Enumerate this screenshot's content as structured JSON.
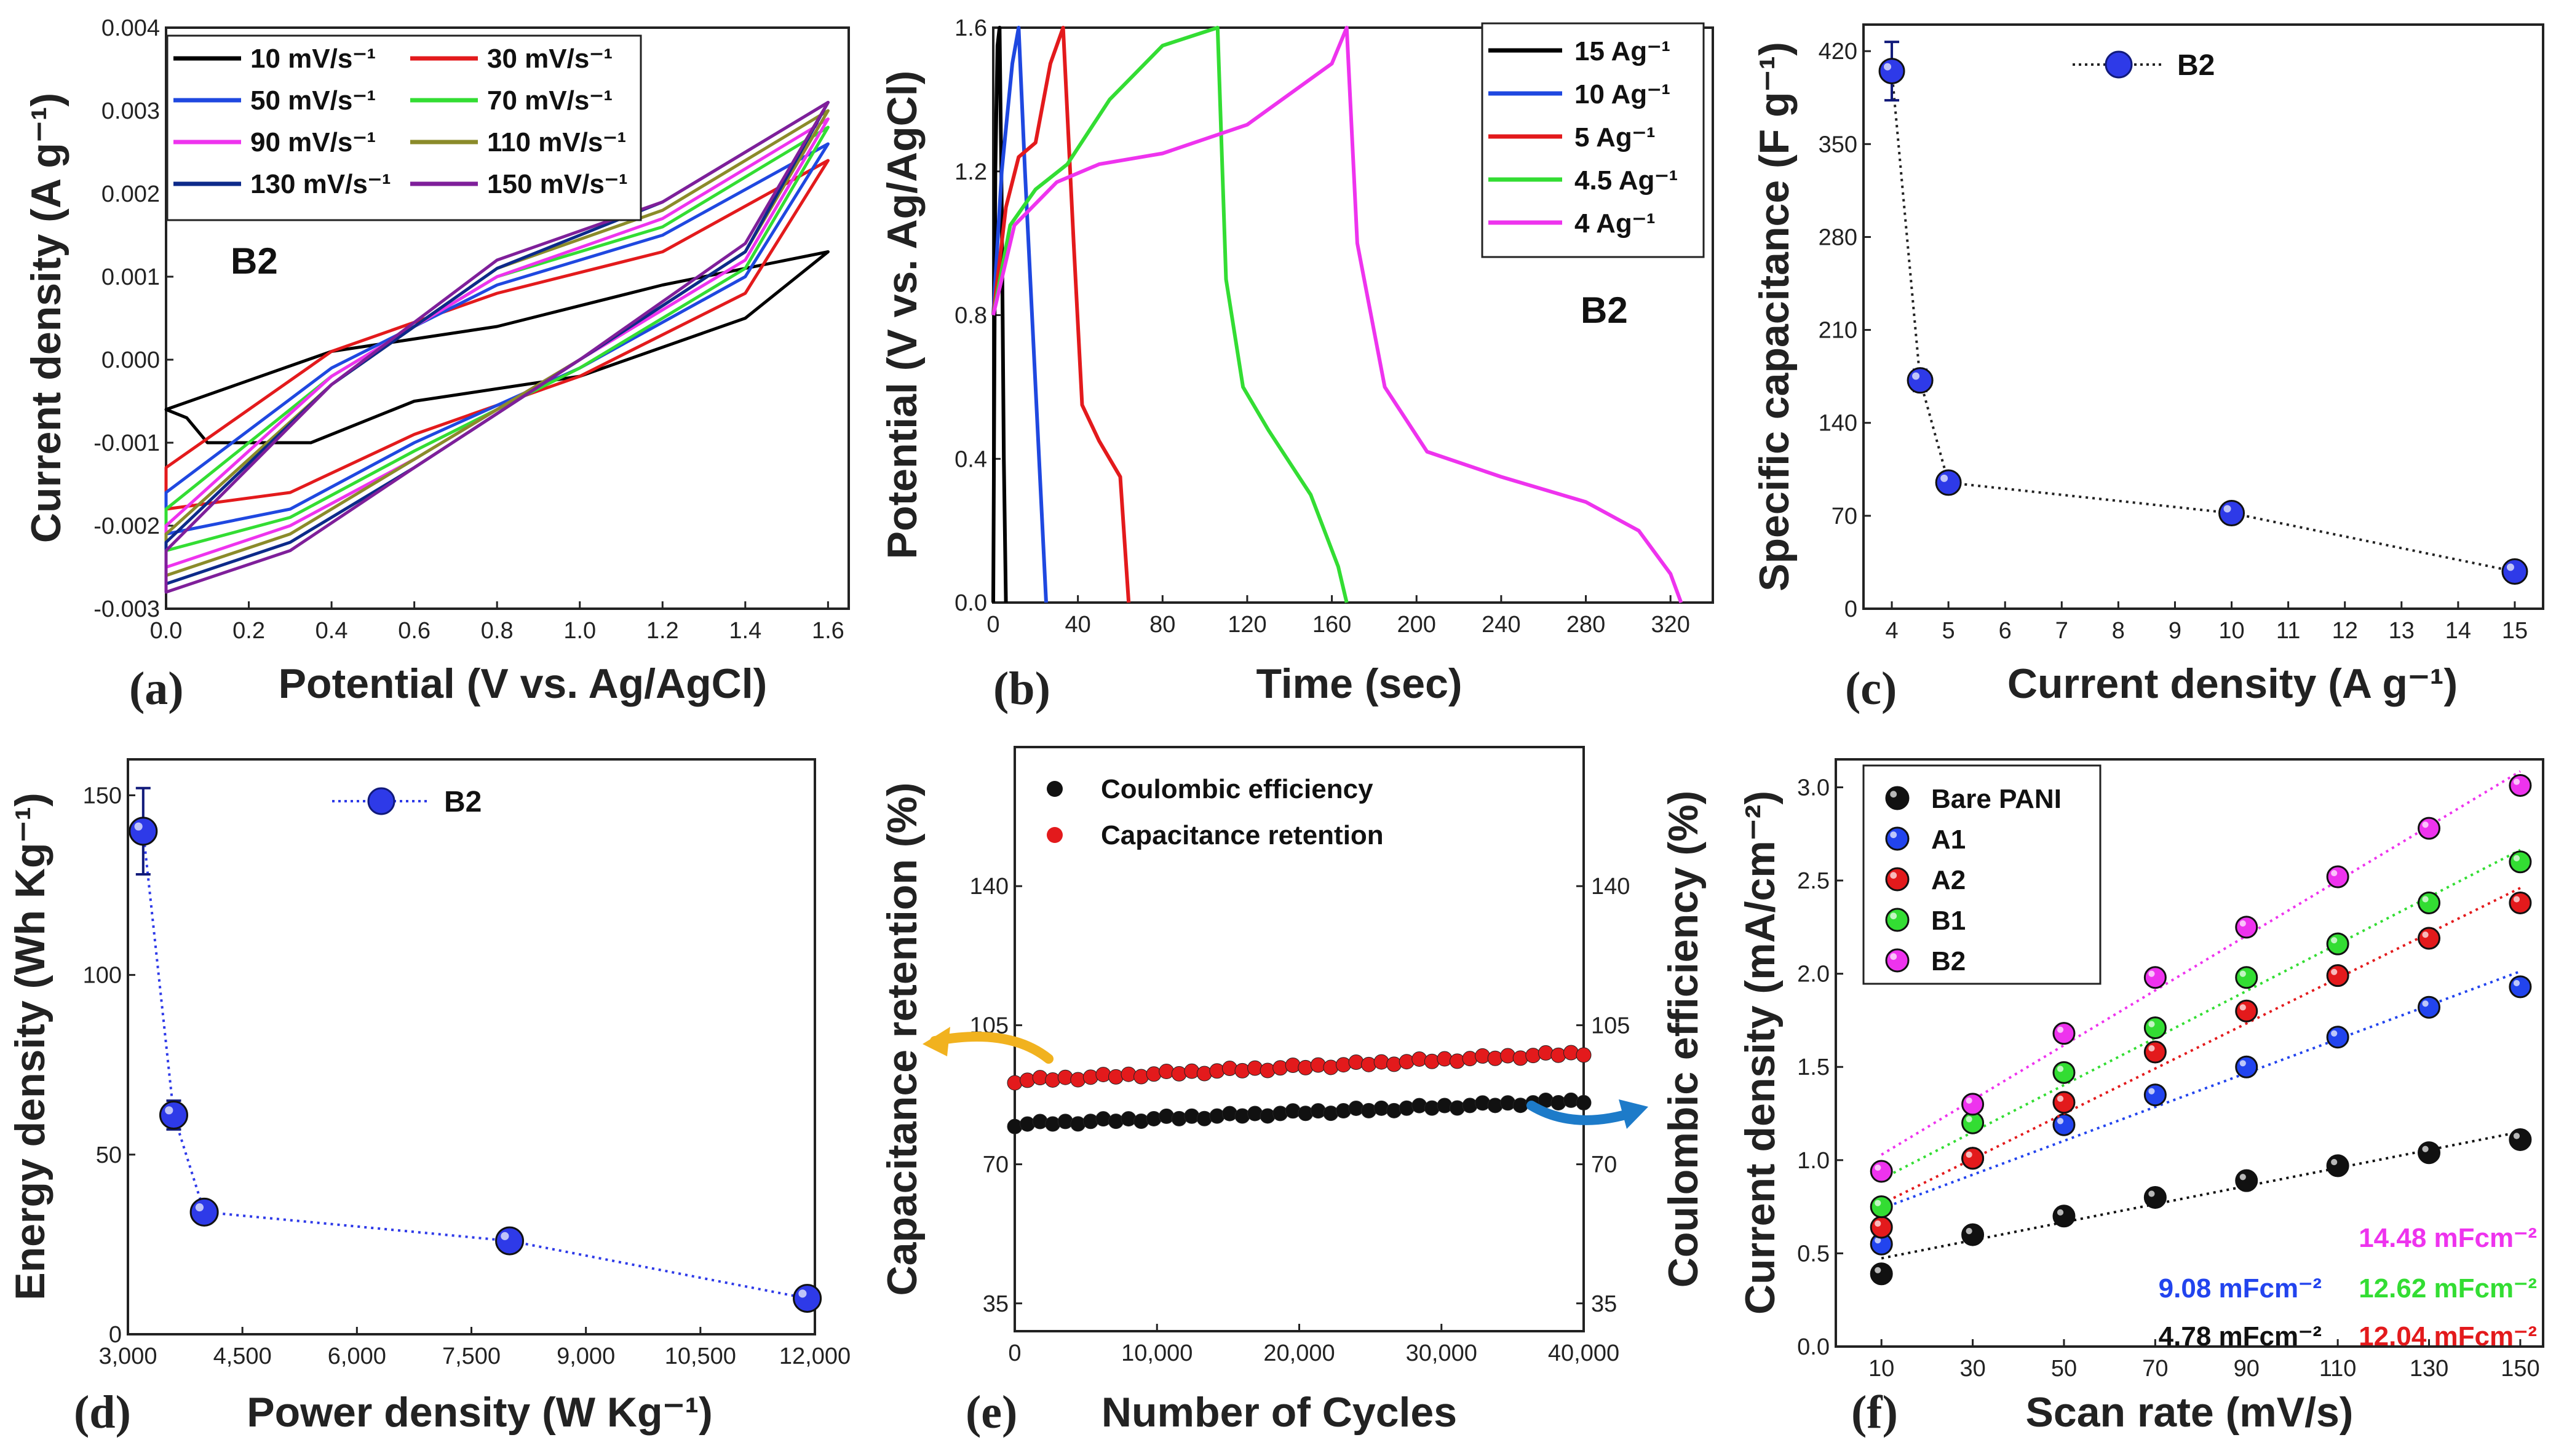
{
  "panels": {
    "a": {
      "letter": "(a)",
      "xlabel": "Potential (V vs. Ag/AgCl)",
      "ylabel": "Current density (A g⁻¹)",
      "tag": "B2"
    },
    "b": {
      "letter": "(b)",
      "xlabel": "Time (sec)",
      "ylabel": "Potential (V vs. Ag/AgCl)",
      "tag": "B2"
    },
    "c": {
      "letter": "(c)",
      "xlabel": "Current density (A g⁻¹)",
      "ylabel": "Specific capacitance (F g⁻¹)",
      "legend": "B2"
    },
    "d": {
      "letter": "(d)",
      "xlabel": "Power density (W Kg⁻¹)",
      "ylabel": "Energy density (Wh Kg⁻¹)",
      "legend": "B2"
    },
    "e": {
      "letter": "(e)",
      "xlabel": "Number of Cycles",
      "ylabel": "Capacitance retention (%)",
      "ylabel_right": "Coulombic efficiency (%)"
    },
    "f": {
      "letter": "(f)",
      "xlabel": "Scan rate (mV/s)",
      "ylabel": "Current density (mA/cm⁻²)"
    }
  },
  "chart_data": [
    {
      "id": "a",
      "type": "line",
      "title": "",
      "xlabel": "Potential (V vs. Ag/AgCl)",
      "ylabel": "Current density (A g-1)",
      "xlim": [
        0.0,
        1.65
      ],
      "ylim": [
        -0.003,
        0.004
      ],
      "xticks": [
        "0.0",
        "0.2",
        "0.4",
        "0.6",
        "0.8",
        "1.0",
        "1.2",
        "1.4",
        "1.6"
      ],
      "yticks": [
        "-0.003",
        "-0.002",
        "-0.001",
        "0.000",
        "0.001",
        "0.002",
        "0.003",
        "0.004"
      ],
      "series": [
        {
          "name": "10 mV/s⁻¹",
          "color": "#000000",
          "upper": [
            [
              0,
              -0.0006
            ],
            [
              0.4,
              0.0001
            ],
            [
              0.8,
              0.0004
            ],
            [
              1.2,
              0.0009
            ],
            [
              1.6,
              0.0013
            ]
          ],
          "lower": [
            [
              0.05,
              -0.0007
            ],
            [
              0.1,
              -0.001
            ],
            [
              0.35,
              -0.001
            ],
            [
              0.6,
              -0.0005
            ],
            [
              1.0,
              -0.0002
            ],
            [
              1.4,
              0.0005
            ],
            [
              1.6,
              0.0013
            ]
          ]
        },
        {
          "name": "30 mV/s⁻¹",
          "color": "#e31a1c",
          "upper": [
            [
              0,
              -0.0013
            ],
            [
              0.4,
              0.0001
            ],
            [
              0.8,
              0.0008
            ],
            [
              1.2,
              0.0013
            ],
            [
              1.6,
              0.0024
            ]
          ],
          "lower": [
            [
              0,
              -0.0018
            ],
            [
              0.3,
              -0.0016
            ],
            [
              0.6,
              -0.0009
            ],
            [
              1.0,
              -0.0002
            ],
            [
              1.4,
              0.0008
            ],
            [
              1.6,
              0.0024
            ]
          ]
        },
        {
          "name": "50 mV/s⁻¹",
          "color": "#1f48e0",
          "upper": [
            [
              0,
              -0.0016
            ],
            [
              0.4,
              -0.0001
            ],
            [
              0.8,
              0.0009
            ],
            [
              1.2,
              0.0015
            ],
            [
              1.6,
              0.0026
            ]
          ],
          "lower": [
            [
              0,
              -0.0021
            ],
            [
              0.3,
              -0.0018
            ],
            [
              0.6,
              -0.001
            ],
            [
              1.0,
              -0.0001
            ],
            [
              1.4,
              0.001
            ],
            [
              1.6,
              0.0026
            ]
          ]
        },
        {
          "name": "70 mV/s⁻¹",
          "color": "#33dd33",
          "upper": [
            [
              0,
              -0.0018
            ],
            [
              0.4,
              -0.0002
            ],
            [
              0.8,
              0.001
            ],
            [
              1.2,
              0.0016
            ],
            [
              1.6,
              0.0028
            ]
          ],
          "lower": [
            [
              0,
              -0.0023
            ],
            [
              0.3,
              -0.0019
            ],
            [
              0.6,
              -0.0011
            ],
            [
              1.0,
              -0.0001
            ],
            [
              1.4,
              0.0011
            ],
            [
              1.6,
              0.0028
            ]
          ]
        },
        {
          "name": "90 mV/s⁻¹",
          "color": "#ee33ee",
          "upper": [
            [
              0,
              -0.002
            ],
            [
              0.4,
              -0.0002
            ],
            [
              0.8,
              0.001
            ],
            [
              1.2,
              0.0017
            ],
            [
              1.6,
              0.0029
            ]
          ],
          "lower": [
            [
              0,
              -0.0025
            ],
            [
              0.3,
              -0.002
            ],
            [
              0.6,
              -0.0012
            ],
            [
              1.0,
              0.0
            ],
            [
              1.4,
              0.0012
            ],
            [
              1.6,
              0.0029
            ]
          ]
        },
        {
          "name": "110 mV/s⁻¹",
          "color": "#8b8b2a",
          "upper": [
            [
              0,
              -0.0021
            ],
            [
              0.4,
              -0.0003
            ],
            [
              0.8,
              0.0011
            ],
            [
              1.2,
              0.0018
            ],
            [
              1.6,
              0.003
            ]
          ],
          "lower": [
            [
              0,
              -0.0026
            ],
            [
              0.3,
              -0.0021
            ],
            [
              0.6,
              -0.0012
            ],
            [
              1.0,
              0.0
            ],
            [
              1.4,
              0.0013
            ],
            [
              1.6,
              0.003
            ]
          ]
        },
        {
          "name": "130 mV/s⁻¹",
          "color": "#0d2a8a",
          "upper": [
            [
              0,
              -0.0022
            ],
            [
              0.4,
              -0.0003
            ],
            [
              0.8,
              0.0011
            ],
            [
              1.2,
              0.0019
            ],
            [
              1.6,
              0.0031
            ]
          ],
          "lower": [
            [
              0,
              -0.0027
            ],
            [
              0.3,
              -0.0022
            ],
            [
              0.6,
              -0.0013
            ],
            [
              1.0,
              0.0
            ],
            [
              1.4,
              0.0013
            ],
            [
              1.6,
              0.0031
            ]
          ]
        },
        {
          "name": "150 mV/s⁻¹",
          "color": "#7f1f9a",
          "upper": [
            [
              0,
              -0.0023
            ],
            [
              0.4,
              -0.0003
            ],
            [
              0.8,
              0.0012
            ],
            [
              1.2,
              0.0019
            ],
            [
              1.6,
              0.0031
            ]
          ],
          "lower": [
            [
              0,
              -0.0028
            ],
            [
              0.3,
              -0.0023
            ],
            [
              0.6,
              -0.0013
            ],
            [
              1.0,
              0.0
            ],
            [
              1.4,
              0.0014
            ],
            [
              1.6,
              0.0031
            ]
          ]
        }
      ]
    },
    {
      "id": "b",
      "type": "line",
      "xlabel": "Time (sec)",
      "ylabel": "Potential (V vs. Ag/AgCl)",
      "xlim": [
        0,
        340
      ],
      "ylim": [
        0.0,
        1.6
      ],
      "xticks": [
        "0",
        "40",
        "80",
        "120",
        "160",
        "200",
        "240",
        "280",
        "320"
      ],
      "yticks": [
        "0.0",
        "0.4",
        "0.8",
        "1.2",
        "1.6"
      ],
      "series": [
        {
          "name": "15 Ag⁻¹",
          "color": "#000000",
          "points": [
            [
              0,
              0
            ],
            [
              1,
              1.2
            ],
            [
              2,
              1.55
            ],
            [
              3,
              1.6
            ],
            [
              4,
              1.1
            ],
            [
              5,
              0.4
            ],
            [
              6,
              0
            ]
          ]
        },
        {
          "name": "10 Ag⁻¹",
          "color": "#1f48e0",
          "points": [
            [
              0,
              0.8
            ],
            [
              4,
              1.2
            ],
            [
              9,
              1.5
            ],
            [
              12,
              1.6
            ],
            [
              15,
              1.2
            ],
            [
              20,
              0.6
            ],
            [
              25,
              0
            ]
          ]
        },
        {
          "name": "5 Ag⁻¹",
          "color": "#e31a1c",
          "points": [
            [
              0,
              0.8
            ],
            [
              6,
              1.1
            ],
            [
              12,
              1.24
            ],
            [
              20,
              1.28
            ],
            [
              27,
              1.5
            ],
            [
              33,
              1.6
            ],
            [
              38,
              1.0
            ],
            [
              42,
              0.55
            ],
            [
              50,
              0.45
            ],
            [
              60,
              0.35
            ],
            [
              64,
              0
            ]
          ]
        },
        {
          "name": "4.5 Ag⁻¹",
          "color": "#33dd33",
          "points": [
            [
              0,
              0.8
            ],
            [
              8,
              1.05
            ],
            [
              20,
              1.15
            ],
            [
              35,
              1.22
            ],
            [
              55,
              1.4
            ],
            [
              80,
              1.55
            ],
            [
              106,
              1.6
            ],
            [
              110,
              0.9
            ],
            [
              118,
              0.6
            ],
            [
              130,
              0.48
            ],
            [
              150,
              0.3
            ],
            [
              163,
              0.1
            ],
            [
              167,
              0
            ]
          ]
        },
        {
          "name": "4 Ag⁻¹",
          "color": "#ee33ee",
          "points": [
            [
              0,
              0.8
            ],
            [
              10,
              1.05
            ],
            [
              30,
              1.17
            ],
            [
              50,
              1.22
            ],
            [
              80,
              1.25
            ],
            [
              120,
              1.33
            ],
            [
              160,
              1.5
            ],
            [
              167,
              1.6
            ],
            [
              172,
              1.0
            ],
            [
              185,
              0.6
            ],
            [
              205,
              0.42
            ],
            [
              240,
              0.35
            ],
            [
              280,
              0.28
            ],
            [
              305,
              0.2
            ],
            [
              320,
              0.08
            ],
            [
              325,
              0
            ]
          ]
        }
      ]
    },
    {
      "id": "c",
      "type": "scatter",
      "xlabel": "Current density (A g-1)",
      "ylabel": "Specific capacitance (F g-1)",
      "xlim": [
        3.5,
        15.5
      ],
      "ylim": [
        0,
        440
      ],
      "xticks": [
        "4",
        "5",
        "6",
        "7",
        "8",
        "9",
        "10",
        "11",
        "12",
        "13",
        "14",
        "15"
      ],
      "yticks": [
        "0",
        "70",
        "140",
        "210",
        "280",
        "350",
        "420"
      ],
      "series": [
        {
          "name": "B2",
          "color": "#2e3ae8",
          "x": [
            4,
            4.5,
            5,
            10,
            15
          ],
          "y": [
            405,
            172,
            95,
            72,
            28
          ],
          "err": [
            22,
            8,
            0,
            0,
            0
          ]
        }
      ]
    },
    {
      "id": "d",
      "type": "scatter",
      "xlabel": "Power density (W Kg-1)",
      "ylabel": "Energy density (Wh Kg-1)",
      "xlim": [
        3000,
        12000
      ],
      "ylim": [
        0,
        160
      ],
      "xticks": [
        "3,000",
        "4,500",
        "6,000",
        "7,500",
        "9,000",
        "10,500",
        "12,000"
      ],
      "yticks": [
        "0",
        "50",
        "100",
        "150"
      ],
      "series": [
        {
          "name": "B2",
          "color": "#2e3ae8",
          "x": [
            3200,
            3600,
            4000,
            8000,
            11900
          ],
          "y": [
            140,
            61,
            34,
            26,
            10
          ],
          "err": [
            12,
            4,
            0,
            0,
            0
          ]
        }
      ]
    },
    {
      "id": "e",
      "type": "scatter",
      "xlabel": "Number of Cycles",
      "ylabel": "Capacitance retention (%)",
      "ylabel_right": "Coulombic efficiency (%)",
      "xlim": [
        0,
        40000
      ],
      "ylim": [
        28,
        175
      ],
      "xticks": [
        "0",
        "10,000",
        "20,000",
        "30,000",
        "40,000"
      ],
      "yticks": [
        "35",
        "70",
        "105",
        "140"
      ],
      "series": [
        {
          "name": "Coulombic efficiency",
          "color": "#111111",
          "start": 80,
          "end": 86
        },
        {
          "name": "Capacitance retention",
          "color": "#e31a1c",
          "start": 91,
          "end": 98
        }
      ]
    },
    {
      "id": "f",
      "type": "scatter",
      "xlabel": "Scan rate (mV/s)",
      "ylabel": "Current density (mA/cm-2)",
      "xlim": [
        0,
        155
      ],
      "ylim": [
        0,
        3.15
      ],
      "xticks": [
        "10",
        "30",
        "50",
        "70",
        "90",
        "110",
        "130",
        "150"
      ],
      "yticks": [
        "0.0",
        "0.5",
        "1.0",
        "1.5",
        "2.0",
        "2.5",
        "3.0"
      ],
      "x": [
        10,
        30,
        50,
        70,
        90,
        110,
        130,
        150
      ],
      "series": [
        {
          "name": "Bare PANI",
          "color": "#111111",
          "y": [
            0.39,
            0.6,
            0.7,
            0.8,
            0.89,
            0.97,
            1.04,
            1.11
          ],
          "slope": "4.78 mFcm⁻²"
        },
        {
          "name": "A1",
          "color": "#2244ee",
          "y": [
            0.55,
            1.01,
            1.19,
            1.35,
            1.5,
            1.66,
            1.82,
            1.93
          ],
          "slope": "9.08 mFcm⁻²"
        },
        {
          "name": "A2",
          "color": "#e31a1c",
          "y": [
            0.64,
            1.01,
            1.31,
            1.58,
            1.8,
            1.99,
            2.19,
            2.38
          ],
          "slope": "12.04 mFcm⁻²"
        },
        {
          "name": "B1",
          "color": "#33dd33",
          "y": [
            0.75,
            1.2,
            1.47,
            1.71,
            1.98,
            2.16,
            2.38,
            2.6
          ],
          "slope": "12.62 mFcm⁻²"
        },
        {
          "name": "B2",
          "color": "#ee33ee",
          "y": [
            0.94,
            1.3,
            1.68,
            1.98,
            2.25,
            2.52,
            2.78,
            3.01
          ],
          "slope": "14.48 mFcm⁻²"
        }
      ]
    }
  ]
}
